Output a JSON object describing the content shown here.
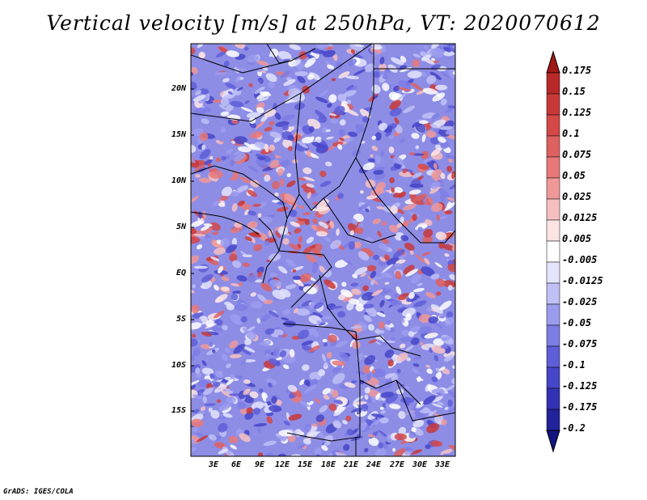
{
  "title": "Vertical velocity [m/s] at 250hPa, VT: 2020070612",
  "credit": "GrADS: IGES/COLA",
  "lat_labels": [
    "20N",
    "15N",
    "10N",
    "5N",
    "EQ",
    "5S",
    "10S",
    "15S"
  ],
  "lon_labels": [
    "3E",
    "6E",
    "9E",
    "12E",
    "15E",
    "18E",
    "21E",
    "24E",
    "27E",
    "30E",
    "33E"
  ],
  "colorbar": {
    "labels": [
      "0.175",
      "0.15",
      "0.125",
      "0.1",
      "0.075",
      "0.05",
      "0.025",
      "0.0125",
      "0.005",
      "-0.005",
      "-0.0125",
      "-0.025",
      "-0.05",
      "-0.075",
      "-0.1",
      "-0.125",
      "-0.175",
      "-0.2"
    ],
    "colors": [
      "#a01818",
      "#b82828",
      "#c83838",
      "#d44848",
      "#de6060",
      "#e87878",
      "#f09898",
      "#f7c0c0",
      "#fde4e4",
      "#ffffff",
      "#e4e4fd",
      "#c0c0f6",
      "#9c9cee",
      "#7c7ce4",
      "#5e5ed8",
      "#4646c8",
      "#3232b4",
      "#22229a",
      "#141480"
    ]
  }
}
